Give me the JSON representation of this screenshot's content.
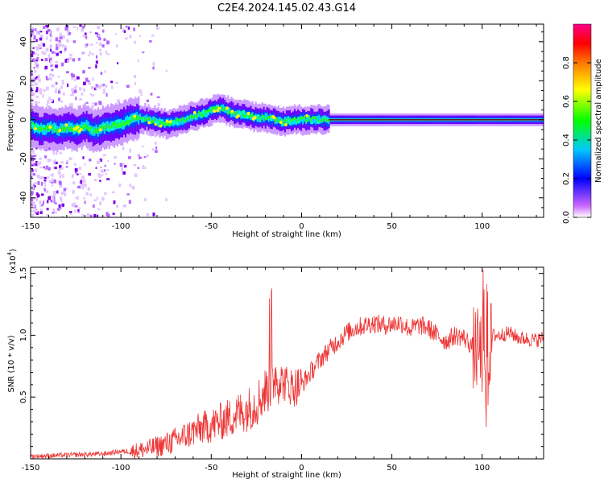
{
  "title": "C2E4.2024.145.02.43.G14",
  "chart_data": [
    {
      "type": "heatmap",
      "xlabel": "Height of straight line (km)",
      "ylabel": "Frequency (Hz)",
      "xlim": [
        -150,
        134
      ],
      "ylim": [
        -50,
        49
      ],
      "x_ticks": [
        -150,
        -100,
        -50,
        0,
        50,
        100
      ],
      "y_ticks": [
        -40,
        -20,
        0,
        20,
        40
      ],
      "ridge": {
        "x": [
          -150,
          -145,
          -140,
          -135,
          -130,
          -125,
          -120,
          -115,
          -110,
          -105,
          -100,
          -95,
          -90,
          -85,
          -80,
          -75,
          -70,
          -65,
          -60,
          -55,
          -50,
          -45,
          -40,
          -35,
          -30,
          -25,
          -20,
          -15,
          -10,
          -5,
          0,
          5,
          10,
          15,
          20,
          134
        ],
        "y": [
          -3,
          -5,
          -4,
          -5,
          -4,
          -5,
          -3,
          -6,
          -4,
          -3,
          -2,
          0,
          1,
          0,
          -1,
          -2,
          -1,
          0,
          2,
          3,
          5,
          6,
          4,
          3,
          2,
          1,
          1,
          0,
          -1,
          0,
          0,
          0.5,
          0,
          0,
          0,
          0
        ]
      },
      "colorbar": {
        "label": "Normalized spectral amplitude",
        "range": [
          0,
          1
        ],
        "ticks": [
          0.0,
          0.2,
          0.4,
          0.6,
          0.8
        ]
      }
    },
    {
      "type": "line",
      "xlabel": "Height of straight line (km)",
      "ylabel": "SNR (10 * v/v)",
      "y_multiplier_label": "(x10",
      "y_multiplier_exp": "4",
      "xlim": [
        -150,
        134
      ],
      "ylim": [
        0,
        1.55
      ],
      "x_ticks": [
        -150,
        -100,
        -50,
        0,
        50,
        100
      ],
      "y_ticks": [
        0.5,
        1.0,
        1.5
      ],
      "series": [
        {
          "color": "#ee3333",
          "x": [
            -150,
            -130,
            -110,
            -100,
            -95,
            -90,
            -85,
            -80,
            -75,
            -70,
            -65,
            -60,
            -55,
            -50,
            -45,
            -40,
            -35,
            -30,
            -25,
            -20,
            -17,
            -15,
            -10,
            -5,
            0,
            5,
            10,
            15,
            20,
            25,
            30,
            35,
            40,
            45,
            50,
            55,
            60,
            65,
            70,
            75,
            80,
            85,
            90,
            95,
            100,
            102,
            104,
            106,
            110,
            115,
            120,
            125,
            130,
            134
          ],
          "y": [
            0.02,
            0.03,
            0.04,
            0.06,
            0.06,
            0.07,
            0.08,
            0.1,
            0.12,
            0.15,
            0.18,
            0.22,
            0.25,
            0.27,
            0.3,
            0.33,
            0.37,
            0.4,
            0.45,
            0.55,
            0.6,
            0.68,
            0.62,
            0.58,
            0.6,
            0.7,
            0.8,
            0.88,
            0.95,
            1.02,
            1.06,
            1.08,
            1.1,
            1.08,
            1.09,
            1.1,
            1.05,
            1.08,
            1.06,
            1.0,
            0.95,
            1.0,
            0.98,
            0.9,
            0.85,
            0.4,
            0.9,
            1.0,
            1.0,
            1.02,
            0.98,
            0.97,
            0.96,
            0.98
          ]
        }
      ]
    }
  ]
}
